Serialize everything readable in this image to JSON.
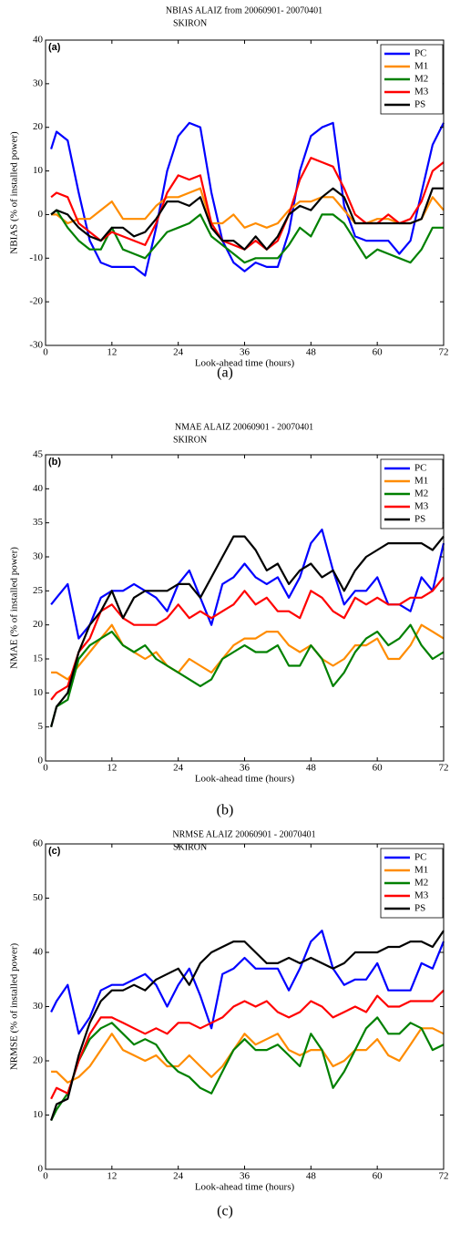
{
  "chart_data": [
    {
      "type": "line",
      "title": "NBIAS ALAIZ from 20060901- 20070401",
      "subtitle": "SKIRON",
      "panel_label": "(a)",
      "caption": "(a)",
      "xlabel": "Look-ahead time (hours)",
      "ylabel": "NBIAS (% of installed power)",
      "xlim": [
        0,
        72
      ],
      "xticks": [
        0,
        12,
        24,
        36,
        48,
        60,
        72
      ],
      "ylim": [
        -30,
        40
      ],
      "yticks": [
        -30,
        -20,
        -10,
        0,
        10,
        20,
        30,
        40
      ],
      "legend": "upper right",
      "x": [
        1,
        2,
        4,
        6,
        8,
        10,
        12,
        14,
        16,
        18,
        20,
        22,
        24,
        26,
        28,
        30,
        32,
        34,
        36,
        38,
        40,
        42,
        44,
        46,
        48,
        50,
        52,
        54,
        56,
        58,
        60,
        62,
        64,
        66,
        68,
        70,
        72
      ],
      "series": [
        {
          "name": "PC",
          "color": "#0000ff",
          "values": [
            15,
            19,
            17,
            5,
            -6,
            -11,
            -12,
            -12,
            -12,
            -14,
            -3,
            10,
            18,
            21,
            20,
            5,
            -6,
            -11,
            -13,
            -11,
            -12,
            -12,
            -4,
            10,
            18,
            20,
            21,
            2,
            -5,
            -6,
            -6,
            -6,
            -9,
            -6,
            5,
            16,
            21
          ]
        },
        {
          "name": "M1",
          "color": "#ff8c00",
          "values": [
            0,
            0,
            -2,
            -1,
            -1,
            1,
            3,
            -1,
            -1,
            -1,
            2,
            4,
            4,
            5,
            6,
            -2,
            -2,
            0,
            -3,
            -2,
            -3,
            -2,
            1,
            3,
            3,
            4,
            4,
            1,
            -2,
            -2,
            -1,
            -1,
            -2,
            -2,
            -1,
            4,
            1
          ]
        },
        {
          "name": "M2",
          "color": "#008000",
          "values": [
            0,
            1,
            -3,
            -6,
            -8,
            -8,
            -3,
            -8,
            -9,
            -10,
            -7,
            -4,
            -3,
            -2,
            0,
            -5,
            -7,
            -9,
            -11,
            -10,
            -10,
            -10,
            -7,
            -3,
            -5,
            0,
            0,
            -2,
            -6,
            -10,
            -8,
            -9,
            -10,
            -11,
            -8,
            -3,
            -3
          ]
        },
        {
          "name": "M3",
          "color": "#ff0000",
          "values": [
            4,
            5,
            4,
            -2,
            -4,
            -6,
            -4,
            -5,
            -6,
            -7,
            -2,
            5,
            9,
            8,
            9,
            -2,
            -6,
            -7,
            -8,
            -6,
            -8,
            -6,
            0,
            8,
            13,
            12,
            11,
            6,
            0,
            -2,
            -2,
            0,
            -2,
            -1,
            3,
            10,
            12
          ]
        },
        {
          "name": "PS",
          "color": "#000000",
          "values": [
            0,
            1,
            0,
            -3,
            -5,
            -6,
            -3,
            -3,
            -5,
            -4,
            -1,
            3,
            3,
            2,
            4,
            -3,
            -6,
            -6,
            -8,
            -5,
            -8,
            -5,
            0,
            2,
            1,
            4,
            6,
            4,
            -2,
            -2,
            -2,
            -2,
            -2,
            -2,
            -1,
            6,
            6
          ]
        }
      ]
    },
    {
      "type": "line",
      "title": "NMAE ALAIZ 20060901 - 20070401",
      "subtitle": "SKIRON",
      "panel_label": "(b)",
      "caption": "(b)",
      "xlabel": "Look-ahead time (hours)",
      "ylabel": "NMAE (% of installed power)",
      "xlim": [
        0,
        72
      ],
      "xticks": [
        0,
        12,
        24,
        36,
        48,
        60,
        72
      ],
      "ylim": [
        0,
        45
      ],
      "yticks": [
        0,
        5,
        10,
        15,
        20,
        25,
        30,
        35,
        40,
        45
      ],
      "legend": "upper right",
      "x": [
        1,
        2,
        4,
        6,
        8,
        10,
        12,
        14,
        16,
        18,
        20,
        22,
        24,
        26,
        28,
        30,
        32,
        34,
        36,
        38,
        40,
        42,
        44,
        46,
        48,
        50,
        52,
        54,
        56,
        58,
        60,
        62,
        64,
        66,
        68,
        70,
        72
      ],
      "series": [
        {
          "name": "PC",
          "color": "#0000ff",
          "values": [
            23,
            24,
            26,
            18,
            20,
            24,
            25,
            25,
            26,
            25,
            24,
            22,
            26,
            28,
            24,
            20,
            26,
            27,
            29,
            27,
            26,
            27,
            24,
            27,
            32,
            34,
            28,
            23,
            25,
            25,
            27,
            23,
            23,
            22,
            27,
            25,
            32
          ]
        },
        {
          "name": "M1",
          "color": "#ff8c00",
          "values": [
            13,
            13,
            12,
            14,
            16,
            18,
            20,
            17,
            16,
            15,
            16,
            14,
            13,
            15,
            14,
            13,
            15,
            17,
            18,
            18,
            19,
            19,
            17,
            16,
            17,
            15,
            14,
            15,
            17,
            17,
            18,
            15,
            15,
            17,
            20,
            19,
            18
          ]
        },
        {
          "name": "M2",
          "color": "#008000",
          "values": [
            5,
            8,
            9,
            15,
            17,
            18,
            19,
            17,
            16,
            17,
            15,
            14,
            13,
            12,
            11,
            12,
            15,
            16,
            17,
            16,
            16,
            17,
            14,
            14,
            17,
            15,
            11,
            13,
            16,
            18,
            19,
            17,
            18,
            20,
            17,
            15,
            16
          ]
        },
        {
          "name": "M3",
          "color": "#ff0000",
          "values": [
            9,
            10,
            11,
            16,
            18,
            22,
            23,
            21,
            20,
            20,
            20,
            21,
            23,
            21,
            22,
            21,
            22,
            23,
            25,
            23,
            24,
            22,
            22,
            21,
            25,
            24,
            22,
            21,
            24,
            23,
            24,
            23,
            23,
            24,
            24,
            25,
            27
          ]
        },
        {
          "name": "PS",
          "color": "#000000",
          "values": [
            5,
            8,
            10,
            16,
            20,
            22,
            25,
            21,
            24,
            25,
            25,
            25,
            26,
            26,
            24,
            27,
            30,
            33,
            33,
            31,
            28,
            29,
            26,
            28,
            29,
            27,
            28,
            25,
            28,
            30,
            31,
            32,
            32,
            32,
            32,
            31,
            33
          ]
        }
      ]
    },
    {
      "type": "line",
      "title": "NRMSE ALAIZ 20060901 - 20070401",
      "subtitle": "SKIRON",
      "panel_label": "(c)",
      "caption": "(c)",
      "xlabel": "Look-ahead time (hours)",
      "ylabel": "NRMSE (% of installed power)",
      "xlim": [
        0,
        72
      ],
      "xticks": [
        0,
        12,
        24,
        36,
        48,
        60,
        72
      ],
      "ylim": [
        0,
        60
      ],
      "yticks": [
        0,
        10,
        20,
        30,
        40,
        50,
        60
      ],
      "legend": "upper right",
      "x": [
        1,
        2,
        4,
        6,
        8,
        10,
        12,
        14,
        16,
        18,
        20,
        22,
        24,
        26,
        28,
        30,
        32,
        34,
        36,
        38,
        40,
        42,
        44,
        46,
        48,
        50,
        52,
        54,
        56,
        58,
        60,
        62,
        64,
        66,
        68,
        70,
        72
      ],
      "series": [
        {
          "name": "PC",
          "color": "#0000ff",
          "values": [
            29,
            31,
            34,
            25,
            28,
            33,
            34,
            34,
            35,
            36,
            34,
            30,
            34,
            37,
            32,
            26,
            36,
            37,
            39,
            37,
            37,
            37,
            33,
            37,
            42,
            44,
            37,
            34,
            35,
            35,
            38,
            33,
            33,
            33,
            38,
            37,
            42
          ]
        },
        {
          "name": "M1",
          "color": "#ff8c00",
          "values": [
            18,
            18,
            16,
            17,
            19,
            22,
            25,
            22,
            21,
            20,
            21,
            19,
            19,
            21,
            19,
            17,
            19,
            22,
            25,
            23,
            24,
            25,
            22,
            21,
            22,
            22,
            19,
            20,
            22,
            22,
            24,
            21,
            20,
            23,
            26,
            26,
            25
          ]
        },
        {
          "name": "M2",
          "color": "#008000",
          "values": [
            9,
            11,
            14,
            20,
            24,
            26,
            27,
            25,
            23,
            24,
            23,
            20,
            18,
            17,
            15,
            14,
            18,
            22,
            24,
            22,
            22,
            23,
            21,
            19,
            25,
            22,
            15,
            18,
            22,
            26,
            28,
            25,
            25,
            27,
            26,
            22,
            23
          ]
        },
        {
          "name": "M3",
          "color": "#ff0000",
          "values": [
            13,
            15,
            14,
            20,
            25,
            28,
            28,
            27,
            26,
            25,
            26,
            25,
            27,
            27,
            26,
            27,
            28,
            30,
            31,
            30,
            31,
            29,
            28,
            29,
            31,
            30,
            28,
            29,
            30,
            29,
            32,
            30,
            30,
            31,
            31,
            31,
            33
          ]
        },
        {
          "name": "PS",
          "color": "#000000",
          "values": [
            9,
            12,
            13,
            21,
            27,
            31,
            33,
            33,
            34,
            33,
            35,
            36,
            37,
            34,
            38,
            40,
            41,
            42,
            42,
            40,
            38,
            38,
            39,
            38,
            39,
            38,
            37,
            38,
            40,
            40,
            40,
            41,
            41,
            42,
            42,
            41,
            44
          ]
        }
      ]
    }
  ]
}
